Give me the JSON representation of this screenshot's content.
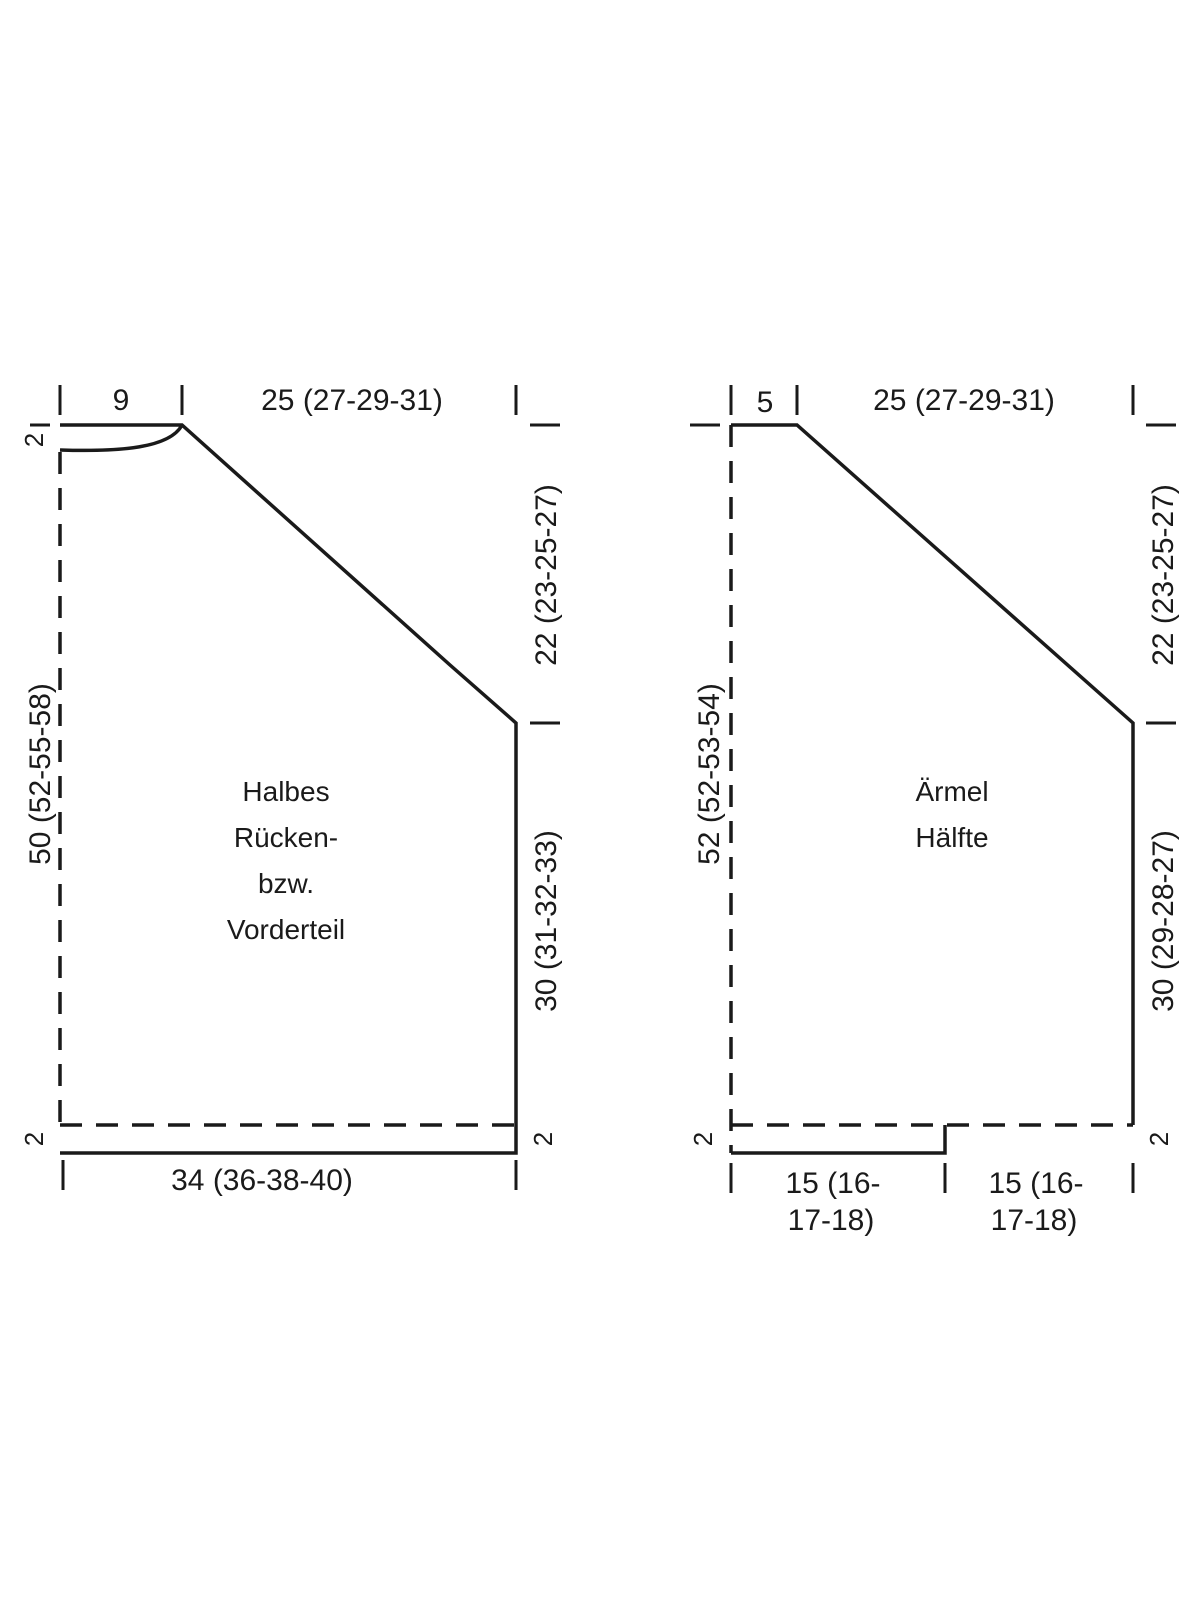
{
  "body_piece": {
    "label_lines": [
      "Halbes",
      "Rücken-",
      "bzw.",
      "Vorderteil"
    ],
    "top_left_dim": "9",
    "top_right_dim": "25 (27-29-31)",
    "left_height_dim": "50 (52-55-58)",
    "right_upper_dim": "22 (23-25-27)",
    "right_lower_dim": "30 (31-32-33)",
    "rib_left": "2",
    "rib_top_left": "2",
    "rib_right": "2",
    "bottom_width_dim": "34 (36-38-40)"
  },
  "sleeve_piece": {
    "label_lines": [
      "Ärmel",
      "Hälfte"
    ],
    "top_left_dim": "5",
    "top_right_dim": "25 (27-29-31)",
    "left_height_dim": "52 (52-53-54)",
    "right_upper_dim": "22 (23-25-27)",
    "right_lower_dim": "30 (29-28-27)",
    "rib_left": "2",
    "rib_right": "2",
    "bottom_left_dim_lines": [
      "15 (16-",
      "17-18)"
    ],
    "bottom_right_dim_lines": [
      "15 (16-",
      "17-18)"
    ]
  }
}
